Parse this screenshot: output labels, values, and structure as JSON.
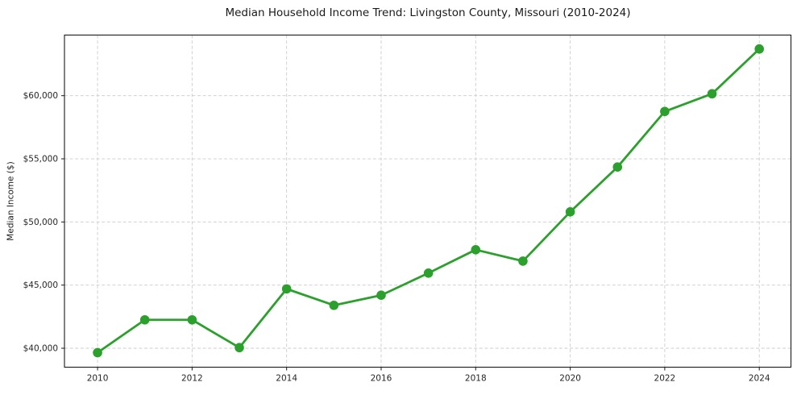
{
  "figure": {
    "title": "Median Household Income Trend: Livingston County, Missouri (2010-2024)"
  },
  "chart_data": {
    "type": "line",
    "title": "Median Household Income Trend: Livingston County, Missouri (2010-2024)",
    "xlabel": "",
    "ylabel": "Median Income ($)",
    "series": [
      {
        "name": "Median household income",
        "x": [
          2010,
          2011,
          2012,
          2013,
          2014,
          2015,
          2016,
          2017,
          2018,
          2019,
          2020,
          2021,
          2022,
          2023,
          2024
        ],
        "values": [
          39650,
          42250,
          42250,
          40050,
          44700,
          43400,
          44200,
          45950,
          47800,
          46900,
          50800,
          54350,
          58750,
          60150,
          63700
        ]
      }
    ],
    "xticks": {
      "values": [
        2010,
        2012,
        2014,
        2016,
        2018,
        2020,
        2022,
        2024
      ],
      "labels": [
        "2010",
        "2012",
        "2014",
        "2016",
        "2018",
        "2020",
        "2022",
        "2024"
      ]
    },
    "yticks": {
      "values": [
        40000,
        45000,
        50000,
        55000,
        60000
      ],
      "labels": [
        "$40,000",
        "$45,000",
        "$50,000",
        "$55,000",
        "$60,000"
      ]
    },
    "xlim": [
      2009.3,
      2024.67
    ],
    "ylim": [
      38500,
      64800
    ],
    "grid": true,
    "legend": false,
    "colors": {
      "line": "#2ca02c",
      "marker": "#2ca02c",
      "grid": "#cccccc",
      "axis": "#1a1a1a",
      "tick_text": "#262626",
      "background": "#ffffff"
    }
  }
}
